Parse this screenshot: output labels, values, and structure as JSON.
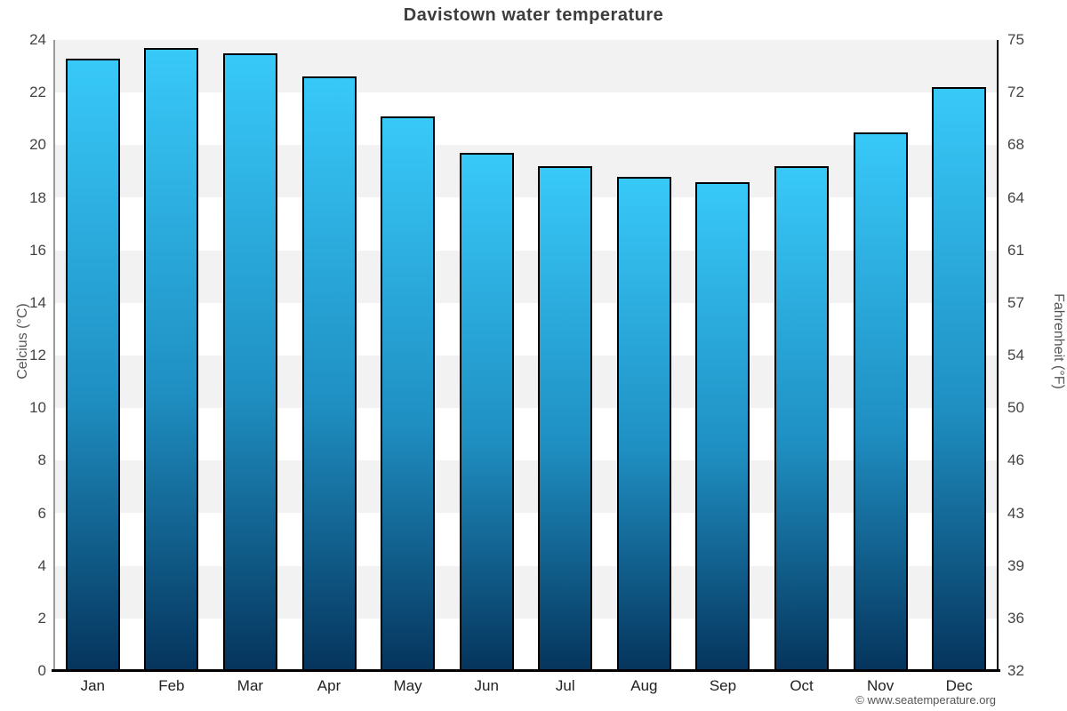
{
  "page": {
    "footer": "© www.seatemperature.org"
  },
  "chart_data": {
    "type": "bar",
    "title": "Davistown water temperature",
    "categories": [
      "Jan",
      "Feb",
      "Mar",
      "Apr",
      "May",
      "Jun",
      "Jul",
      "Aug",
      "Sep",
      "Oct",
      "Nov",
      "Dec"
    ],
    "values": [
      23.3,
      23.7,
      23.5,
      22.6,
      21.1,
      19.7,
      19.2,
      18.8,
      18.6,
      19.2,
      20.5,
      22.2
    ],
    "ylabel_left": "Celcius (°C)",
    "ylabel_right": "Fahrenheit (°F)",
    "ylim": [
      0,
      24
    ],
    "yticks_celsius": [
      24,
      22,
      20,
      18,
      16,
      14,
      12,
      10,
      8,
      6,
      4,
      2,
      0
    ],
    "yticks_fahrenheit": [
      75,
      72,
      68,
      64,
      61,
      57,
      54,
      50,
      46,
      43,
      39,
      36,
      32
    ],
    "legend": "none",
    "grid": "alternating horizontal bands per 2°C",
    "colors": {
      "bar_top": "#38c9f9",
      "bar_mid": "#1f8fc2",
      "bar_bottom": "#05345c",
      "bar_border": "#000000",
      "band_gray": "#f2f2f2",
      "band_white": "#ffffff",
      "axis_left_line": "#9a9a9a",
      "axis_right_line": "#000000",
      "axis_bottom_line": "#000000",
      "title_text": "#3d3d3d",
      "tick_text": "#444444"
    }
  }
}
